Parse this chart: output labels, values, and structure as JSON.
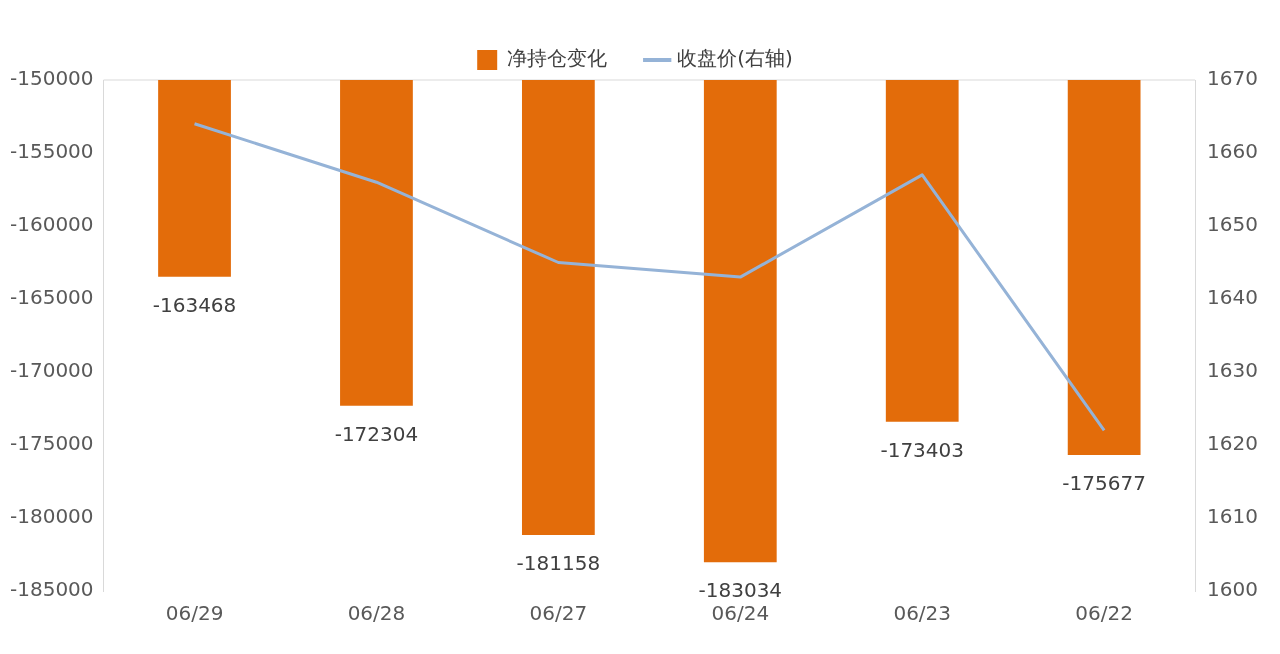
{
  "chart_data": {
    "type": "bar",
    "categories": [
      "06/29",
      "06/28",
      "06/27",
      "06/24",
      "06/23",
      "06/22"
    ],
    "series": [
      {
        "name": "净持仓变化",
        "color": "#e36c0a",
        "values": [
          -163468,
          -172304,
          -181158,
          -183034,
          -173403,
          -175677
        ],
        "value_labels": [
          "-163468",
          "-172304",
          "-181158",
          "-183034",
          "-173403",
          "-175677"
        ]
      },
      {
        "name": "收盘价(右轴)",
        "type": "line",
        "axis": "y2",
        "color": "#95b3d7",
        "values": [
          1664,
          1656,
          1645,
          1643,
          1657,
          1622
        ]
      }
    ],
    "legend": "top",
    "grid": false,
    "marker": "none",
    "line_style": "solid",
    "ylim": [
      -185000,
      -150000
    ],
    "yticks": [
      -185000,
      -180000,
      -175000,
      -170000,
      -165000,
      -160000,
      -155000,
      -150000
    ],
    "y2lim": [
      1600,
      1670
    ],
    "y2ticks": [
      1600,
      1610,
      1620,
      1630,
      1640,
      1650,
      1660,
      1670
    ]
  }
}
